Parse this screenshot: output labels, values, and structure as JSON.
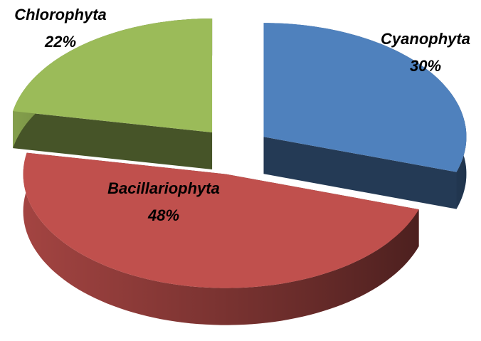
{
  "chart_data": {
    "type": "pie3d",
    "categories": [
      "Cyanophyta",
      "Bacillariophyta",
      "Chlorophyta"
    ],
    "values": [
      30,
      48,
      22
    ],
    "value_labels": [
      "30%",
      "48%",
      "22%"
    ],
    "colors": [
      "#4f81bd",
      "#c0504d",
      "#9bbb59"
    ]
  }
}
